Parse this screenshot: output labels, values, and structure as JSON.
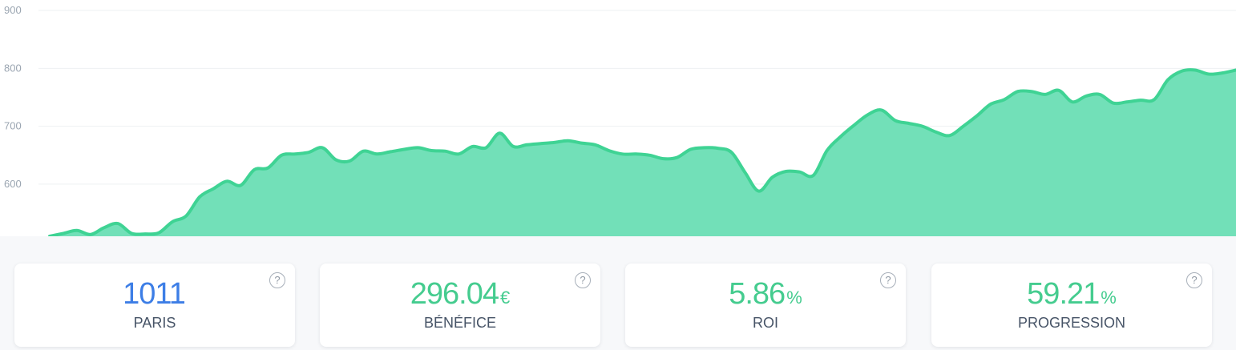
{
  "chart_data": {
    "type": "area",
    "yticks": [
      "900",
      "800",
      "700",
      "600"
    ],
    "ylim": [
      510,
      918
    ],
    "grid": true,
    "color": "#3fd394",
    "fill": "#72e0b8",
    "values": [
      510,
      515,
      520,
      513,
      525,
      532,
      515,
      514,
      516,
      535,
      545,
      578,
      592,
      605,
      598,
      625,
      628,
      650,
      652,
      655,
      663,
      642,
      640,
      657,
      652,
      656,
      660,
      663,
      658,
      657,
      652,
      665,
      663,
      688,
      665,
      668,
      670,
      672,
      675,
      671,
      668,
      658,
      652,
      652,
      650,
      644,
      646,
      660,
      663,
      662,
      655,
      620,
      588,
      612,
      622,
      621,
      615,
      658,
      682,
      702,
      720,
      728,
      710,
      705,
      700,
      690,
      684,
      700,
      718,
      738,
      746,
      760,
      760,
      755,
      762,
      742,
      752,
      755,
      740,
      742,
      745,
      746,
      780,
      795,
      797,
      790,
      792,
      797
    ]
  },
  "cards": [
    {
      "value": "1011",
      "unit": "",
      "label": "PARIS",
      "color": "#3d7ee6"
    },
    {
      "value": "296.04",
      "unit": "€",
      "label": "BÉNÉFICE",
      "color": "#45cc8f"
    },
    {
      "value": "5.86",
      "unit": "%",
      "label": "ROI",
      "color": "#45cc8f"
    },
    {
      "value": "59.21",
      "unit": "%",
      "label": "PROGRESSION",
      "color": "#45cc8f"
    }
  ],
  "help_icon": "?"
}
